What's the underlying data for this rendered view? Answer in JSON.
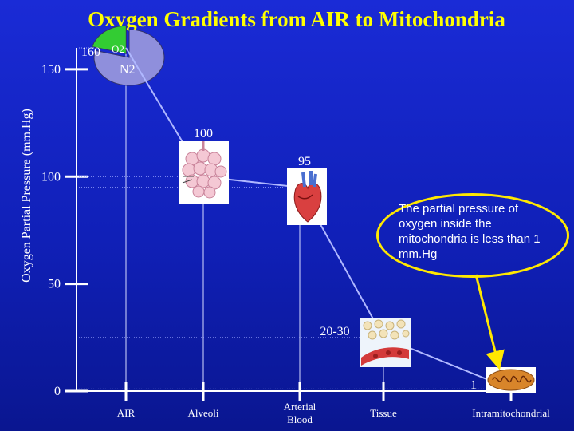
{
  "chart_data": {
    "type": "line",
    "title": "Oxygen Gradients from AIR to Mitochondria",
    "ylabel": "Oxygen Partial Pressure (mm.Hg)",
    "xlabel": "",
    "ylim": [
      0,
      160
    ],
    "yticks": [
      0,
      50,
      100,
      150
    ],
    "categories": [
      "AIR",
      "Alveoli",
      "Arterial Blood",
      "Tissue",
      "Intramitochondrial"
    ],
    "values": [
      160,
      100,
      95,
      25,
      1
    ],
    "value_labels": [
      "160",
      "100",
      "95",
      "20-30",
      "1"
    ],
    "pie": {
      "slices": [
        {
          "label": "O2",
          "value": 21,
          "color": "#33cc33"
        },
        {
          "label": "N2",
          "value": 79,
          "color": "#8f8fdc"
        }
      ]
    },
    "grid": false,
    "line_color": "#b0b8ff"
  },
  "annotation": {
    "text": "The partial pressure of oxygen inside the mitochondria is less than 1 mm.Hg"
  },
  "colors": {
    "title": "#ffff00",
    "arrow": "#ffe800",
    "callout_border": "#ffe800"
  },
  "icons": [
    "alveoli-icon",
    "heart-icon",
    "capillary-tissue-icon",
    "mitochondrion-icon"
  ]
}
